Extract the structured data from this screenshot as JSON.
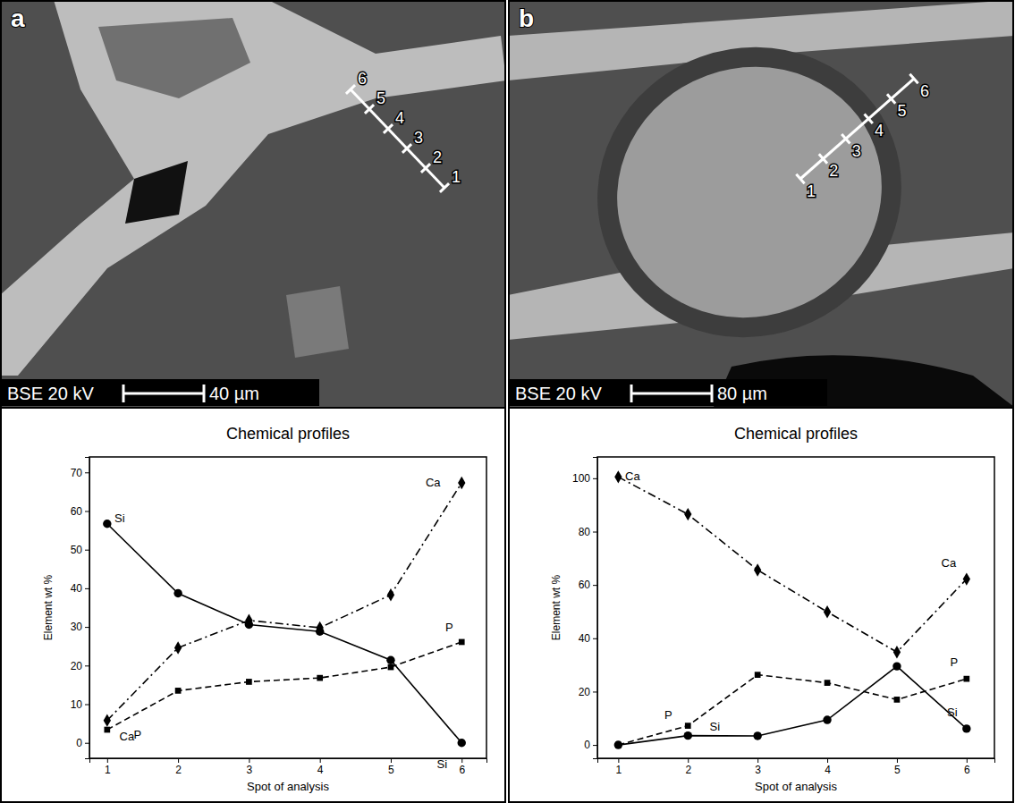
{
  "chart_data": [
    {
      "type": "line",
      "title": "Chemical profiles",
      "x_label": "Spot of analysis",
      "y_label": "Element wt %",
      "x": [
        1,
        2,
        3,
        4,
        5,
        6
      ],
      "xlim": [
        0.75,
        6.35
      ],
      "xticks": [
        1,
        2,
        3,
        4,
        5,
        6
      ],
      "ylim": [
        -4,
        74
      ],
      "yticks": [
        0,
        10,
        20,
        30,
        40,
        50,
        60,
        70
      ],
      "grid": false,
      "series": [
        {
          "name": "Si",
          "color": "#000000",
          "marker": "circle",
          "line_style": "solid",
          "values": [
            56.7,
            38.7,
            30.6,
            28.8,
            21.4,
            0
          ]
        },
        {
          "name": "Ca",
          "color": "#000000",
          "marker": "diamond",
          "line_style": "dashdot",
          "values": [
            5.8,
            24.6,
            31.7,
            29.8,
            38.3,
            67.3
          ]
        },
        {
          "name": "P",
          "color": "#000000",
          "marker": "square",
          "line_style": "dashed",
          "values": [
            3.4,
            13.5,
            15.8,
            16.8,
            19.6,
            26.1
          ]
        }
      ]
    },
    {
      "type": "line",
      "title": "Chemical profiles",
      "x_label": "Spot of analysis",
      "y_label": "Element wt %",
      "x": [
        1,
        2,
        3,
        4,
        5,
        6
      ],
      "xlim": [
        0.7,
        6.4
      ],
      "xticks": [
        1,
        2,
        3,
        4,
        5,
        6
      ],
      "ylim": [
        -5,
        108
      ],
      "yticks": [
        0,
        20,
        40,
        60,
        80,
        100
      ],
      "grid": false,
      "series": [
        {
          "name": "Si",
          "color": "#000000",
          "marker": "circle",
          "line_style": "solid",
          "values": [
            0,
            3.5,
            3.4,
            9.4,
            29.5,
            6.1
          ]
        },
        {
          "name": "Ca",
          "color": "#000000",
          "marker": "diamond",
          "line_style": "dashdot",
          "values": [
            100.5,
            86.5,
            65.6,
            49.9,
            34.8,
            62.2
          ]
        },
        {
          "name": "P",
          "color": "#000000",
          "marker": "square",
          "line_style": "dashed",
          "values": [
            0,
            7.2,
            26.3,
            23.3,
            17.0,
            24.8
          ]
        }
      ]
    }
  ],
  "images": [
    {
      "letter": "a",
      "detector": "BSE 20 kV",
      "scale_bar": "40 µm",
      "spots": [
        1,
        2,
        3,
        4,
        5,
        6
      ]
    },
    {
      "letter": "b",
      "detector": "BSE 20 kV",
      "scale_bar": "80 µm",
      "spots": [
        1,
        2,
        3,
        4,
        5,
        6
      ]
    }
  ]
}
